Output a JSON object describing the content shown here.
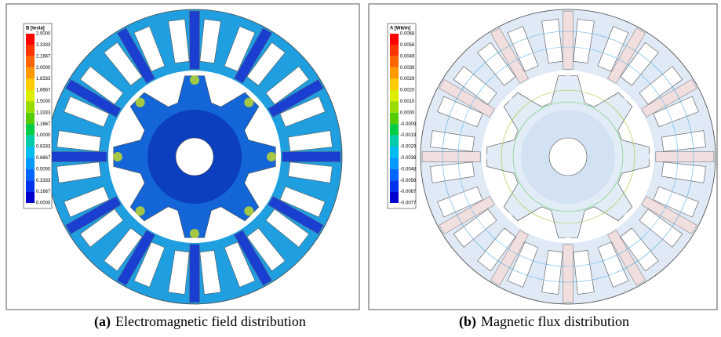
{
  "panels": [
    {
      "legend": {
        "title": "B [tesla]",
        "labels": [
          "2.5000",
          "2.3333",
          "2.1667",
          "2.0000",
          "1.8333",
          "1.6667",
          "1.5000",
          "1.3333",
          "1.1667",
          "1.0000",
          "0.8333",
          "0.6667",
          "0.5000",
          "0.3333",
          "0.1667",
          "0.0000"
        ]
      },
      "caption": {
        "label": "(a)",
        "text": "Electromagnetic field distribution"
      }
    },
    {
      "legend": {
        "title": "A [Wb/m]",
        "labels": [
          "0.0068",
          "0.0058",
          "0.0049",
          "0.0039",
          "0.0029",
          "0.0020",
          "0.0010",
          "0.0000",
          "-0.0009",
          "-0.0019",
          "-0.0029",
          "-0.0038",
          "-0.0048",
          "-0.0058",
          "-0.0067",
          "-0.0077"
        ]
      },
      "caption": {
        "label": "(b)",
        "text": "Magnetic flux distribution"
      }
    }
  ]
}
